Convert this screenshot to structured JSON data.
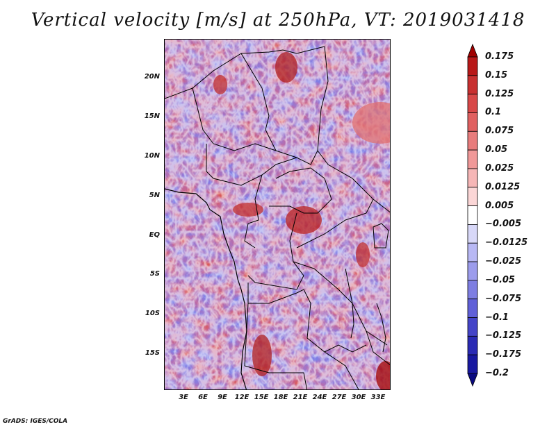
{
  "figure": {
    "title": "Vertical velocity [m/s] at 250hPa, VT: 2019031418",
    "credit": "GrADS: IGES/COLA"
  },
  "chart_data": {
    "type": "heatmap",
    "title": "Vertical velocity [m/s] at 250hPa, VT: 2019031418",
    "variable": "Vertical velocity",
    "units": "m/s",
    "level": "250hPa",
    "valid_time": "2019031418",
    "lat_range": [
      -20,
      25
    ],
    "lon_range": [
      0,
      35
    ],
    "lat_ticks": [
      "20N",
      "15N",
      "10N",
      "5N",
      "EQ",
      "5S",
      "10S",
      "15S"
    ],
    "lon_ticks": [
      "3E",
      "6E",
      "9E",
      "12E",
      "15E",
      "18E",
      "21E",
      "24E",
      "27E",
      "30E",
      "33E"
    ],
    "colorbar": {
      "labels": [
        "0.175",
        "0.15",
        "0.125",
        "0.1",
        "0.075",
        "0.05",
        "0.025",
        "0.0125",
        "0.005",
        "−0.005",
        "−0.0125",
        "−0.025",
        "−0.05",
        "−0.075",
        "−0.1",
        "−0.125",
        "−0.175",
        "−0.2"
      ],
      "colors": [
        "#a00000",
        "#b81818",
        "#c83030",
        "#d84848",
        "#e06060",
        "#e87c7c",
        "#f09898",
        "#f6b6b6",
        "#fbd6d6",
        "#ffffff",
        "#d8d8f8",
        "#b8b8f4",
        "#9c9cec",
        "#7e7ee2",
        "#6060d8",
        "#4444c8",
        "#2a2ab4",
        "#1818a0",
        "#0a0a80"
      ]
    }
  }
}
